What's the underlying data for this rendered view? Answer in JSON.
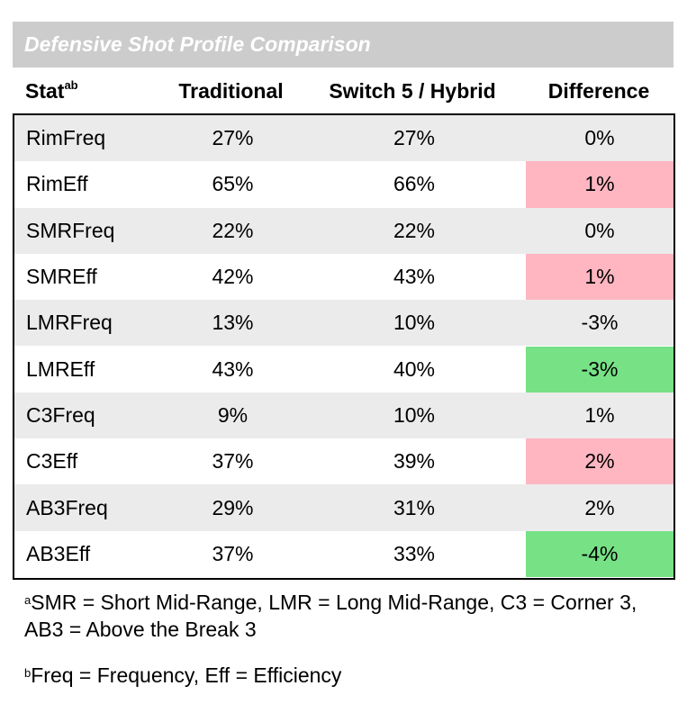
{
  "title": "Defensive Shot Profile Comparison",
  "headers": {
    "stat": "Stat",
    "stat_sup": "ab",
    "traditional": "Traditional",
    "switch": "Switch 5 / Hybrid",
    "difference": "Difference"
  },
  "rows": [
    {
      "stat": "RimFreq",
      "traditional": "27%",
      "switch": "27%",
      "difference": "0%",
      "highlight": "none"
    },
    {
      "stat": "RimEff",
      "traditional": "65%",
      "switch": "66%",
      "difference": "1%",
      "highlight": "pink"
    },
    {
      "stat": "SMRFreq",
      "traditional": "22%",
      "switch": "22%",
      "difference": "0%",
      "highlight": "none"
    },
    {
      "stat": "SMREff",
      "traditional": "42%",
      "switch": "43%",
      "difference": "1%",
      "highlight": "pink"
    },
    {
      "stat": "LMRFreq",
      "traditional": "13%",
      "switch": "10%",
      "difference": "-3%",
      "highlight": "none"
    },
    {
      "stat": "LMREff",
      "traditional": "43%",
      "switch": "40%",
      "difference": "-3%",
      "highlight": "green"
    },
    {
      "stat": "C3Freq",
      "traditional": "9%",
      "switch": "10%",
      "difference": "1%",
      "highlight": "none"
    },
    {
      "stat": "C3Eff",
      "traditional": "37%",
      "switch": "39%",
      "difference": "2%",
      "highlight": "pink"
    },
    {
      "stat": "AB3Freq",
      "traditional": "29%",
      "switch": "31%",
      "difference": "2%",
      "highlight": "none"
    },
    {
      "stat": "AB3Eff",
      "traditional": "37%",
      "switch": "33%",
      "difference": "-4%",
      "highlight": "green"
    }
  ],
  "footnotes": {
    "a_mark": "a",
    "a_text": "SMR = Short Mid-Range, LMR = Long Mid-Range, C3 = Corner 3, AB3 = Above the Break 3",
    "b_mark": "b",
    "b_text": "Freq = Frequency, Eff = Efficiency"
  },
  "colors": {
    "title_bg": "#cccccc",
    "row_shade": "#ebebeb",
    "worse_highlight": "#ffb6c1",
    "better_highlight": "#77e186"
  }
}
